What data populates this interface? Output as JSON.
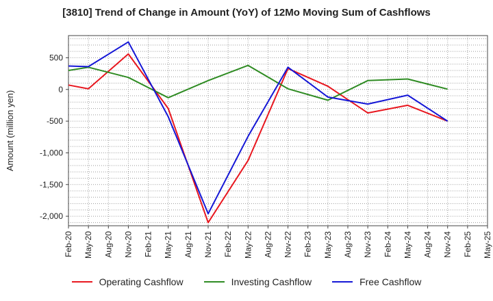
{
  "chart_data": {
    "type": "line",
    "title": "[3810]  Trend of Change in Amount (YoY) of 12Mo Moving Sum of Cashflows",
    "xlabel": "",
    "ylabel": "Amount (million yen)",
    "ylim": [
      -2150,
      850
    ],
    "yticks": [
      500,
      0,
      -500,
      -1000,
      -1500,
      -2000
    ],
    "ytick_labels": [
      "500",
      "0",
      "-500",
      "-1,000",
      "-1,500",
      "-2,000"
    ],
    "categories": [
      "Feb-20",
      "May-20",
      "Aug-20",
      "Nov-20",
      "Feb-21",
      "May-21",
      "Aug-21",
      "Nov-21",
      "Feb-22",
      "May-22",
      "Aug-22",
      "Nov-22",
      "Feb-23",
      "May-23",
      "Aug-23",
      "Nov-23",
      "Feb-24",
      "May-24",
      "Aug-24",
      "Nov-24",
      "Feb-25",
      "May-25"
    ],
    "grid": true,
    "legend_position": "bottom",
    "series": [
      {
        "name": "Operating Cashflow",
        "color": "#e8161e",
        "values": [
          70,
          10,
          null,
          560,
          null,
          -300,
          null,
          -2100,
          null,
          -1120,
          null,
          330,
          null,
          50,
          null,
          -370,
          null,
          -250,
          null,
          -500,
          null,
          null
        ]
      },
      {
        "name": "Investing Cashflow",
        "color": "#2e8b22",
        "values": [
          300,
          350,
          null,
          190,
          null,
          -130,
          null,
          140,
          null,
          380,
          null,
          10,
          null,
          -170,
          null,
          140,
          null,
          165,
          null,
          5,
          null,
          null
        ]
      },
      {
        "name": "Free Cashflow",
        "color": "#1416d6",
        "values": [
          370,
          360,
          null,
          750,
          null,
          -430,
          null,
          -1960,
          null,
          -740,
          null,
          350,
          null,
          -120,
          null,
          -230,
          null,
          -90,
          null,
          -500,
          null,
          null
        ]
      }
    ]
  }
}
